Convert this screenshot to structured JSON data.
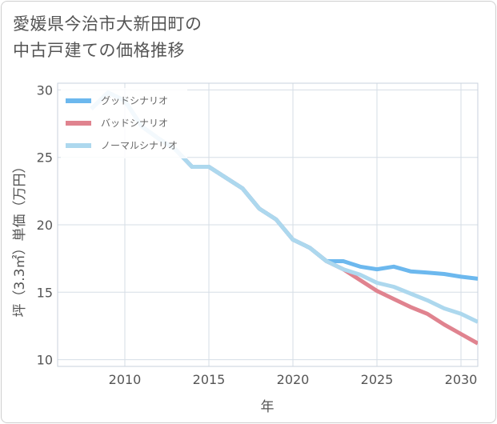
{
  "title_lines": [
    "愛媛県今治市大新田町の",
    "中古戸建ての価格推移"
  ],
  "chart_data": {
    "type": "line",
    "xlabel": "年",
    "ylabel": "坪（3.3㎡）単価（万円）",
    "xlim": [
      2006,
      2031
    ],
    "ylim": [
      9.5,
      30.5
    ],
    "xticks": [
      2010,
      2015,
      2020,
      2025,
      2030
    ],
    "yticks": [
      10,
      15,
      20,
      25,
      30
    ],
    "grid": true,
    "legend_position": "top-left",
    "series": [
      {
        "name": "グッドシナリオ",
        "color": "#6cb8ee",
        "x": [
          2008,
          2009,
          2010,
          2011,
          2012,
          2013,
          2014,
          2015,
          2016,
          2017,
          2018,
          2019,
          2020,
          2021,
          2022,
          2023,
          2024,
          2025,
          2026,
          2027,
          2028,
          2029,
          2030,
          2031
        ],
        "y": [
          28.6,
          29.8,
          29.2,
          27.3,
          26.4,
          25.6,
          24.3,
          24.3,
          23.5,
          22.7,
          21.2,
          20.4,
          18.9,
          18.3,
          17.3,
          17.3,
          16.9,
          16.7,
          16.9,
          16.55,
          16.45,
          16.35,
          16.15,
          16.0
        ]
      },
      {
        "name": "バッドシナリオ",
        "color": "#e0838f",
        "x": [
          2008,
          2009,
          2010,
          2011,
          2012,
          2013,
          2014,
          2015,
          2016,
          2017,
          2018,
          2019,
          2020,
          2021,
          2022,
          2023,
          2024,
          2025,
          2026,
          2027,
          2028,
          2029,
          2030,
          2031
        ],
        "y": [
          28.6,
          29.8,
          29.2,
          27.3,
          26.4,
          25.6,
          24.3,
          24.3,
          23.5,
          22.7,
          21.2,
          20.4,
          18.9,
          18.3,
          17.3,
          16.7,
          15.9,
          15.1,
          14.5,
          13.9,
          13.4,
          12.6,
          11.9,
          11.2
        ]
      },
      {
        "name": "ノーマルシナリオ",
        "color": "#add8ee",
        "x": [
          2008,
          2009,
          2010,
          2011,
          2012,
          2013,
          2014,
          2015,
          2016,
          2017,
          2018,
          2019,
          2020,
          2021,
          2022,
          2023,
          2024,
          2025,
          2026,
          2027,
          2028,
          2029,
          2030,
          2031
        ],
        "y": [
          28.6,
          29.8,
          29.2,
          27.3,
          26.4,
          25.6,
          24.3,
          24.3,
          23.5,
          22.7,
          21.2,
          20.4,
          18.9,
          18.3,
          17.3,
          16.7,
          16.3,
          15.7,
          15.4,
          14.9,
          14.4,
          13.8,
          13.4,
          12.8
        ]
      }
    ]
  }
}
